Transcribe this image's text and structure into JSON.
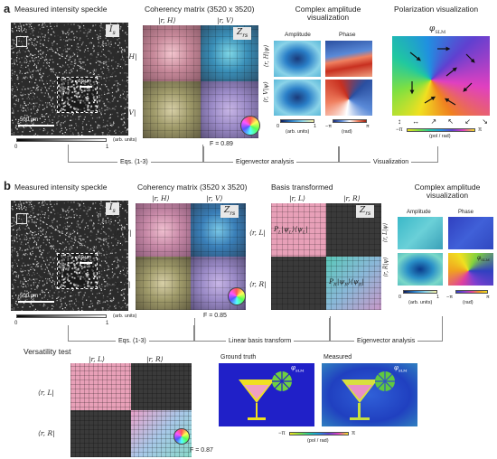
{
  "panel_a": {
    "letter": "a",
    "speckle_title": "Measured intensity speckle",
    "speckle_tag": "I",
    "speckle_tag_sub": "s",
    "scale_500": "500 μm",
    "scale_50": "50 μm",
    "colorbar_min": "0",
    "colorbar_max": "1",
    "colorbar_unit": "(arb. units)",
    "coherency_title": "Coherency matrix (3520 x 3520)",
    "coherency_tag": "Z",
    "coherency_tag_sub": "rs",
    "col_h": "|r, H⟩",
    "col_v": "|r, V⟩",
    "row_h": "⟨r, H|",
    "row_v": "⟨r, V|",
    "fidelity": "F = 0.89",
    "complex_title": "Complex amplitude visualization",
    "amplitude_label": "Amplitude",
    "phase_label": "Phase",
    "row_h_psi": "⟨r, H|ψ⟩",
    "row_v_psi": "⟨r, V|ψ⟩",
    "amp_min": "0",
    "amp_max": "1",
    "amp_unit": "(arb. units)",
    "phase_min": "−π",
    "phase_max": "π",
    "phase_unit": "(rad)",
    "polarization_title": "Polarization visualization",
    "phi_label": "φ",
    "phi_sub": "SLM",
    "pol_min": "−π",
    "pol_max": "π",
    "pol_unit": "(pol / rad)",
    "flow_eqs": "Eqs. (1-3)",
    "flow_eigen": "Eigenvector analysis",
    "flow_vis": "Visualization"
  },
  "panel_b": {
    "letter": "b",
    "speckle_title": "Measured intensity speckle",
    "speckle_tag": "I",
    "speckle_tag_sub": "s",
    "scale_500": "500 μm",
    "scale_50": "50 μm",
    "colorbar_min": "0",
    "colorbar_max": "1",
    "colorbar_unit": "(arb. units)",
    "coherency_title": "Coherency matrix (3520 x 3520)",
    "coherency_tag": "Z",
    "coherency_tag_sub": "rs",
    "col_h": "|r, H⟩",
    "col_v": "|r, V⟩",
    "row_h": "⟨r, H|",
    "row_v": "⟨r, V|",
    "fidelity": "F = 0.85",
    "basis_title": "Basis transformed",
    "basis_tag": "Z",
    "basis_tag_sub": "rs",
    "col_l": "|r, L⟩",
    "col_r": "|r, R⟩",
    "row_l": "⟨r, L|",
    "row_r": "⟨r, R|",
    "pl_text": "P",
    "pl_sub": "L",
    "pl_rest": "|ψ",
    "pl_rest_sub": "L",
    "pl_end": "⟩⟨ψ",
    "pl_end_sub": "L",
    "pl_close": "|",
    "pr_text": "P",
    "pr_sub": "R",
    "pr_rest": "|ψ",
    "pr_rest_sub": "R",
    "pr_end": "⟩⟨ψ",
    "pr_end_sub": "R",
    "pr_close": "|",
    "complex_title": "Complex amplitude visualization",
    "amplitude_label": "Amplitude",
    "phase_label": "Phase",
    "row_l_psi": "⟨r, L|ψ⟩",
    "row_r_psi": "⟨r, R|ψ⟩",
    "phi_label": "φ",
    "phi_sub": "SLM",
    "amp_min": "0",
    "amp_max": "1",
    "amp_unit": "(arb. units)",
    "phase_min": "−π",
    "phase_max": "π",
    "phase_unit": "(rad)",
    "flow_eqs": "Eqs. (1-3)",
    "flow_linear": "Linear basis transform",
    "flow_eigen": "Eigenvector analysis"
  },
  "versatility": {
    "title": "Versatility test",
    "col_l": "|r, L⟩",
    "col_r": "|r, R⟩",
    "row_l": "⟨r, L|",
    "row_r": "⟨r, R|",
    "fidelity": "F = 0.87",
    "gt_label": "Ground truth",
    "meas_label": "Measured",
    "phi_label": "φ",
    "phi_sub": "SLM",
    "cb_min": "−π",
    "cb_max": "π",
    "cb_unit": "(pol / rad)"
  }
}
